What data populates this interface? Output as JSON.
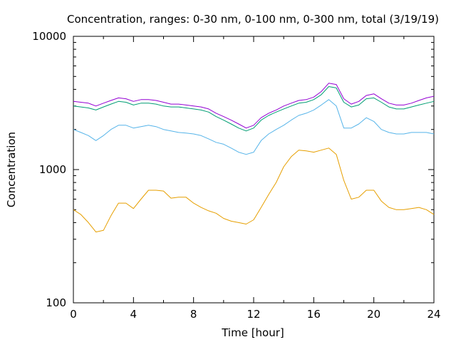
{
  "chart_data": {
    "type": "line",
    "title": "Concentration, ranges: 0-30 nm, 0-100 nm, 0-300 nm, total (3/19/19)",
    "xlabel": "Time [hour]",
    "ylabel": "Concentration",
    "xlim": [
      0,
      24
    ],
    "ylim": [
      100,
      10000
    ],
    "yscale": "log",
    "xticks": [
      0,
      4,
      8,
      12,
      16,
      20,
      24
    ],
    "yticks": [
      100,
      1000,
      10000
    ],
    "xtick_labels": [
      "0",
      "4",
      "8",
      "12",
      "16",
      "20",
      "24"
    ],
    "ytick_labels": [
      "100",
      "1000",
      "10000"
    ],
    "grid": false,
    "legend": "none",
    "x": [
      0,
      0.5,
      1,
      1.5,
      2,
      2.5,
      3,
      3.5,
      4,
      4.5,
      5,
      5.5,
      6,
      6.5,
      7,
      7.5,
      8,
      8.5,
      9,
      9.5,
      10,
      10.5,
      11,
      11.5,
      12,
      12.5,
      13,
      13.5,
      14,
      14.5,
      15,
      15.5,
      16,
      16.5,
      17,
      17.5,
      18,
      18.5,
      19,
      19.5,
      20,
      20.5,
      21,
      21.5,
      22,
      22.5,
      23,
      23.5,
      24
    ],
    "series": [
      {
        "color": "#e69f00",
        "values": [
          500,
          460,
          400,
          340,
          350,
          450,
          560,
          560,
          510,
          600,
          700,
          700,
          690,
          610,
          620,
          620,
          560,
          520,
          490,
          470,
          430,
          410,
          400,
          390,
          420,
          520,
          650,
          800,
          1050,
          1250,
          1400,
          1380,
          1350,
          1400,
          1450,
          1300,
          830,
          600,
          620,
          700,
          700,
          580,
          520,
          500,
          500,
          510,
          520,
          500,
          460
        ]
      },
      {
        "color": "#56b4e9",
        "values": [
          2000,
          1900,
          1800,
          1650,
          1800,
          2000,
          2150,
          2150,
          2050,
          2100,
          2150,
          2100,
          2000,
          1950,
          1900,
          1880,
          1850,
          1800,
          1700,
          1600,
          1550,
          1450,
          1350,
          1300,
          1350,
          1650,
          1850,
          2000,
          2150,
          2350,
          2550,
          2650,
          2800,
          3050,
          3350,
          3000,
          2050,
          2050,
          2200,
          2450,
          2300,
          2000,
          1900,
          1850,
          1850,
          1900,
          1900,
          1900,
          1850
        ]
      },
      {
        "color": "#009e73",
        "values": [
          3000,
          2950,
          2900,
          2800,
          2950,
          3100,
          3250,
          3200,
          3050,
          3150,
          3150,
          3100,
          3000,
          2950,
          2950,
          2900,
          2850,
          2800,
          2700,
          2500,
          2350,
          2200,
          2050,
          1950,
          2050,
          2350,
          2550,
          2700,
          2850,
          3000,
          3150,
          3200,
          3350,
          3650,
          4200,
          4100,
          3200,
          2950,
          3050,
          3400,
          3450,
          3200,
          2950,
          2850,
          2850,
          2950,
          3050,
          3150,
          3250
        ]
      },
      {
        "color": "#9400d3",
        "values": [
          3250,
          3200,
          3150,
          3000,
          3150,
          3300,
          3450,
          3400,
          3250,
          3350,
          3350,
          3300,
          3200,
          3100,
          3100,
          3050,
          3000,
          2950,
          2850,
          2650,
          2500,
          2350,
          2200,
          2050,
          2150,
          2450,
          2650,
          2800,
          3000,
          3150,
          3300,
          3350,
          3500,
          3850,
          4450,
          4350,
          3400,
          3100,
          3250,
          3600,
          3700,
          3400,
          3150,
          3050,
          3050,
          3150,
          3300,
          3450,
          3550
        ]
      }
    ]
  }
}
